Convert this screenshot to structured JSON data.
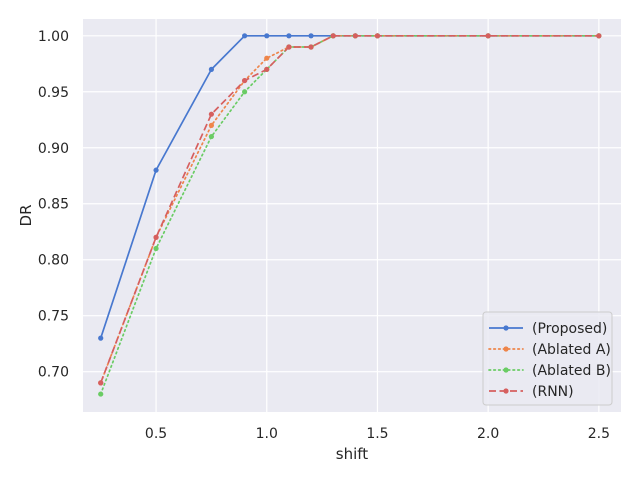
{
  "chart_data": {
    "type": "line",
    "title": "",
    "xlabel": "shift",
    "ylabel": "DR",
    "xlim": [
      0.17,
      2.6
    ],
    "ylim": [
      0.664,
      1.015
    ],
    "xticks": [
      0.5,
      1.0,
      1.5,
      2.0,
      2.5
    ],
    "xtick_labels": [
      "0.5",
      "1.0",
      "1.5",
      "2.0",
      "2.5"
    ],
    "yticks": [
      0.7,
      0.75,
      0.8,
      0.85,
      0.9,
      0.95,
      1.0
    ],
    "ytick_labels": [
      "0.70",
      "0.75",
      "0.80",
      "0.85",
      "0.90",
      "0.95",
      "1.00"
    ],
    "grid": true,
    "legend_position": "lower-right",
    "series": [
      {
        "name": "(Proposed)",
        "color": "#4878cf",
        "style": "solid",
        "x": [
          0.25,
          0.5,
          0.75,
          0.9,
          1.0,
          1.1,
          1.2,
          1.3,
          1.4,
          1.5,
          2.0,
          2.5
        ],
        "y": [
          0.73,
          0.88,
          0.97,
          1.0,
          1.0,
          1.0,
          1.0,
          1.0,
          1.0,
          1.0,
          1.0,
          1.0
        ]
      },
      {
        "name": "(Ablated A)",
        "color": "#ee854a",
        "style": "dotted",
        "x": [
          0.25,
          0.5,
          0.75,
          0.9,
          1.0,
          1.1,
          1.2,
          1.3,
          1.4,
          1.5,
          2.0,
          2.5
        ],
        "y": [
          0.69,
          0.82,
          0.92,
          0.96,
          0.98,
          0.99,
          0.99,
          1.0,
          1.0,
          1.0,
          1.0,
          1.0
        ]
      },
      {
        "name": "(Ablated B)",
        "color": "#6acc64",
        "style": "dotted",
        "x": [
          0.25,
          0.5,
          0.75,
          0.9,
          1.0,
          1.1,
          1.2,
          1.3,
          1.4,
          1.5,
          2.0,
          2.5
        ],
        "y": [
          0.68,
          0.81,
          0.91,
          0.95,
          0.97,
          0.99,
          0.99,
          1.0,
          1.0,
          1.0,
          1.0,
          1.0
        ]
      },
      {
        "name": "(RNN)",
        "color": "#d65f5f",
        "style": "dashed",
        "x": [
          0.25,
          0.5,
          0.75,
          0.9,
          1.0,
          1.1,
          1.2,
          1.3,
          1.4,
          1.5,
          2.0,
          2.5
        ],
        "y": [
          0.69,
          0.82,
          0.93,
          0.96,
          0.97,
          0.99,
          0.99,
          1.0,
          1.0,
          1.0,
          1.0,
          1.0
        ]
      }
    ]
  }
}
